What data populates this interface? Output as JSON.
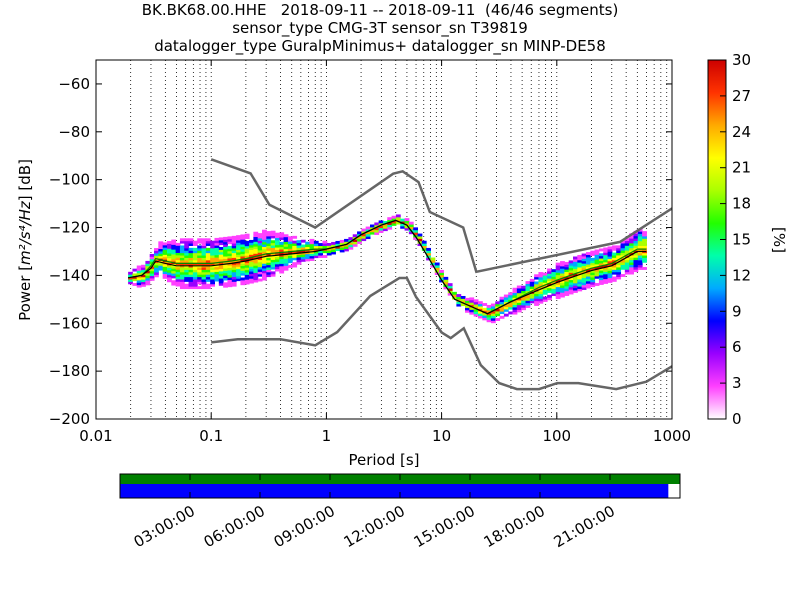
{
  "title": {
    "line1": "BK.BK68.00.HHE   2018-09-11 -- 2018-09-11  (46/46 segments)",
    "line2": "sensor_type CMG-3T sensor_sn T39819",
    "line3": "datalogger_type GuralpMinimus+ datalogger_sn MINP-DE58"
  },
  "chart_data": [
    {
      "type": "heatmap",
      "xlabel": "Period [s]",
      "ylabel_prefix": "Power [",
      "ylabel_units": "m²/s⁴/Hz",
      "ylabel_suffix": "] [dB]",
      "xscale": "log",
      "xlim": [
        0.01,
        1000
      ],
      "ylim": [
        -200,
        -50
      ],
      "x_ticks": [
        {
          "value": 0.01,
          "label": "0.01"
        },
        {
          "value": 0.1,
          "label": "0.1"
        },
        {
          "value": 1,
          "label": "1"
        },
        {
          "value": 10,
          "label": "10"
        },
        {
          "value": 100,
          "label": "100"
        },
        {
          "value": 1000,
          "label": "1000"
        }
      ],
      "y_ticks": [
        {
          "value": -60,
          "label": "−60"
        },
        {
          "value": -80,
          "label": "−80"
        },
        {
          "value": -100,
          "label": "−100"
        },
        {
          "value": -120,
          "label": "−120"
        },
        {
          "value": -140,
          "label": "−140"
        },
        {
          "value": -160,
          "label": "−160"
        },
        {
          "value": -180,
          "label": "−180"
        },
        {
          "value": -200,
          "label": "−200"
        }
      ],
      "grid": "dotted vertical",
      "noise_model_high": [
        [
          0.1,
          -91.5
        ],
        [
          0.22,
          -97.4
        ],
        [
          0.32,
          -110.5
        ],
        [
          0.8,
          -120
        ],
        [
          3.8,
          -97.5
        ],
        [
          4.6,
          -96.5
        ],
        [
          6.3,
          -101
        ],
        [
          7.9,
          -113.5
        ],
        [
          15.4,
          -120
        ],
        [
          20,
          -138.5
        ],
        [
          354,
          -126
        ],
        [
          1000,
          -112
        ]
      ],
      "noise_model_low": [
        [
          0.1,
          -168
        ],
        [
          0.17,
          -166.7
        ],
        [
          0.4,
          -166.7
        ],
        [
          0.8,
          -169.2
        ],
        [
          1.24,
          -163.7
        ],
        [
          2.4,
          -148.6
        ],
        [
          4.3,
          -141.1
        ],
        [
          5,
          -141.1
        ],
        [
          6,
          -149
        ],
        [
          10,
          -163.8
        ],
        [
          12,
          -166.2
        ],
        [
          15.6,
          -162.1
        ],
        [
          21.9,
          -177.5
        ],
        [
          31.6,
          -185
        ],
        [
          45,
          -187.5
        ],
        [
          70,
          -187.5
        ],
        [
          101,
          -185
        ],
        [
          154,
          -185
        ],
        [
          328,
          -187.5
        ],
        [
          600,
          -184.4
        ],
        [
          1000,
          -178
        ]
      ],
      "mode_curve": [
        [
          0.019,
          -141
        ],
        [
          0.025,
          -140
        ],
        [
          0.03,
          -136
        ],
        [
          0.033,
          -133
        ],
        [
          0.04,
          -134
        ],
        [
          0.05,
          -135
        ],
        [
          0.07,
          -135
        ],
        [
          0.1,
          -135
        ],
        [
          0.15,
          -134
        ],
        [
          0.2,
          -133
        ],
        [
          0.3,
          -131
        ],
        [
          0.5,
          -130
        ],
        [
          0.8,
          -129
        ],
        [
          1,
          -129
        ],
        [
          1.5,
          -127
        ],
        [
          2,
          -123
        ],
        [
          3,
          -119
        ],
        [
          4,
          -117
        ],
        [
          5,
          -119
        ],
        [
          6,
          -124
        ],
        [
          8,
          -134
        ],
        [
          10,
          -142
        ],
        [
          13,
          -150
        ],
        [
          18,
          -153
        ],
        [
          25,
          -156
        ],
        [
          40,
          -151
        ],
        [
          70,
          -145
        ],
        [
          100,
          -142
        ],
        [
          150,
          -139
        ],
        [
          200,
          -137
        ],
        [
          300,
          -135
        ],
        [
          500,
          -129
        ],
        [
          600,
          -129
        ]
      ],
      "mean_curve": [
        [
          0.019,
          -141
        ],
        [
          0.025,
          -140
        ],
        [
          0.03,
          -137
        ],
        [
          0.033,
          -134
        ],
        [
          0.04,
          -135
        ],
        [
          0.05,
          -136
        ],
        [
          0.07,
          -136
        ],
        [
          0.1,
          -136
        ],
        [
          0.15,
          -135
        ],
        [
          0.2,
          -134
        ],
        [
          0.3,
          -132
        ],
        [
          0.5,
          -131
        ],
        [
          0.8,
          -130
        ],
        [
          1,
          -129
        ],
        [
          1.5,
          -127
        ],
        [
          2,
          -123
        ],
        [
          3,
          -119
        ],
        [
          4,
          -117
        ],
        [
          5,
          -119
        ],
        [
          6,
          -124
        ],
        [
          8,
          -134
        ],
        [
          10,
          -142
        ],
        [
          13,
          -150
        ],
        [
          18,
          -153
        ],
        [
          25,
          -156
        ],
        [
          40,
          -151
        ],
        [
          70,
          -146
        ],
        [
          100,
          -143
        ],
        [
          150,
          -140
        ],
        [
          200,
          -138
        ],
        [
          300,
          -136
        ],
        [
          500,
          -130
        ],
        [
          600,
          -130
        ]
      ],
      "band_width_db": [
        [
          0.019,
          2
        ],
        [
          0.03,
          5
        ],
        [
          0.05,
          9
        ],
        [
          0.1,
          10
        ],
        [
          0.3,
          9
        ],
        [
          0.6,
          4
        ],
        [
          1,
          2
        ],
        [
          5,
          2
        ],
        [
          15,
          2
        ],
        [
          25,
          3
        ],
        [
          60,
          5
        ],
        [
          150,
          7
        ],
        [
          300,
          6
        ],
        [
          600,
          8
        ]
      ],
      "colorbar": {
        "label": "[%]",
        "min": 0,
        "max": 30,
        "ticks": [
          {
            "value": 0,
            "label": "0"
          },
          {
            "value": 3,
            "label": "3"
          },
          {
            "value": 6,
            "label": "6"
          },
          {
            "value": 9,
            "label": "9"
          },
          {
            "value": 12,
            "label": "12"
          },
          {
            "value": 15,
            "label": "15"
          },
          {
            "value": 18,
            "label": "18"
          },
          {
            "value": 21,
            "label": "21"
          },
          {
            "value": 24,
            "label": "24"
          },
          {
            "value": 27,
            "label": "27"
          },
          {
            "value": 30,
            "label": "30"
          }
        ],
        "colormap": [
          "#ffffff",
          "#ff40ff",
          "#9900ff",
          "#0000ff",
          "#00aaff",
          "#00ffaa",
          "#22ff00",
          "#aaff00",
          "#ffff00",
          "#ffaa00",
          "#ff3300",
          "#cc0000"
        ]
      },
      "colors": {
        "noise_model": "#666666",
        "mean": "#000000",
        "mode": "#008800"
      }
    },
    {
      "type": "timeline",
      "time_ticks": [
        {
          "hour": 3,
          "label": "03:00:00"
        },
        {
          "hour": 6,
          "label": "06:00:00"
        },
        {
          "hour": 9,
          "label": "09:00:00"
        },
        {
          "hour": 12,
          "label": "12:00:00"
        },
        {
          "hour": 15,
          "label": "15:00:00"
        },
        {
          "hour": 18,
          "label": "18:00:00"
        },
        {
          "hour": 21,
          "label": "21:00:00"
        }
      ],
      "day_start_hour": 0,
      "day_end_hour": 24,
      "data_coverage_end_hour": 23.5,
      "colors": {
        "coverage": "#008000",
        "used": "#0000ff"
      }
    }
  ]
}
